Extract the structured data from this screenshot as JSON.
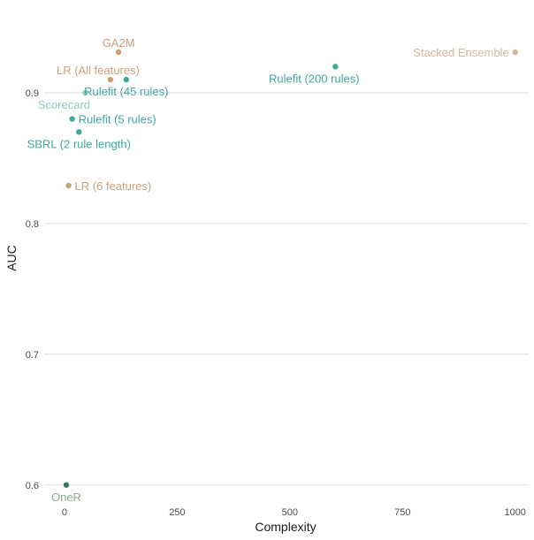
{
  "chart_data": {
    "type": "scatter",
    "title": "",
    "xlabel": "Complexity",
    "ylabel": "AUC",
    "xlim": [
      -45,
      1030
    ],
    "ylim": [
      0.587,
      0.952
    ],
    "xticks": [
      0,
      250,
      500,
      750,
      1000
    ],
    "yticks": [
      0.6,
      0.7,
      0.8,
      0.9
    ],
    "grid": "horizontal",
    "legend": "none",
    "points": [
      {
        "label": "GA2M",
        "x": 120,
        "y": 0.931,
        "color": "#c9a17f",
        "label_pos": "above"
      },
      {
        "label": "LR (All features)",
        "x": 102,
        "y": 0.91,
        "color": "#c9a17f",
        "label_pos": "above-left"
      },
      {
        "label": "Rulefit (45 rules)",
        "x": 137,
        "y": 0.91,
        "color": "#3ea99a",
        "label_pos": "below"
      },
      {
        "label": "Scorecard",
        "x": 46,
        "y": 0.9,
        "color": "#8ecbc4",
        "label_pos": "below-left"
      },
      {
        "label": "Rulefit (5 rules)",
        "x": 17,
        "y": 0.88,
        "color": "#3ea99a",
        "label_pos": "right"
      },
      {
        "label": "SBRL (2 rule length)",
        "x": 32,
        "y": 0.87,
        "color": "#3ea99a",
        "label_pos": "below"
      },
      {
        "label": "LR (6 features)",
        "x": 9,
        "y": 0.829,
        "color": "#c9a17f",
        "label_pos": "right"
      },
      {
        "label": "Rulefit (200 rules)",
        "x": 601,
        "y": 0.92,
        "color": "#3ea99a",
        "label_pos": "below-left"
      },
      {
        "label": "Stacked Ensemble",
        "x": 1000,
        "y": 0.931,
        "color": "#d8b59a",
        "label_pos": "left"
      },
      {
        "label": "OneR",
        "x": 4,
        "y": 0.6,
        "color": "#2e7d66",
        "label_color": "#8aab8c",
        "label_pos": "below"
      }
    ]
  }
}
